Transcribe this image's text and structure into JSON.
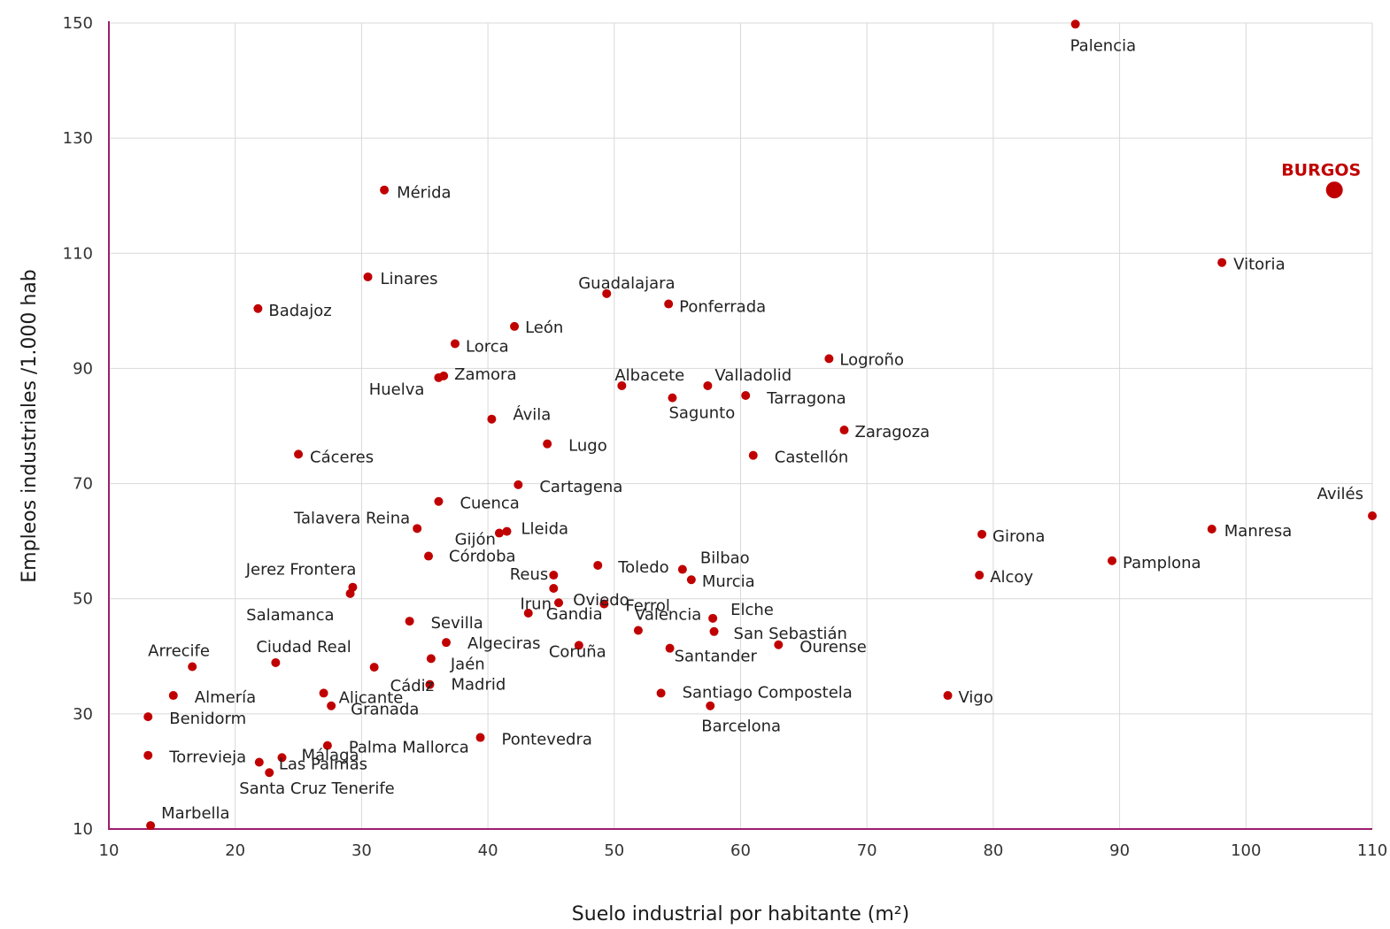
{
  "chart_data": {
    "type": "scatter",
    "title": "",
    "xlabel": "Suelo industrial por habitante (m²)",
    "ylabel": "Empleos industriales /1.000 hab",
    "xlim": [
      10,
      110
    ],
    "ylim": [
      10,
      150
    ],
    "xticks": [
      "10",
      "20",
      "30",
      "40",
      "50",
      "60",
      "70",
      "80",
      "90",
      "100",
      "110"
    ],
    "yticks": [
      "10",
      "30",
      "50",
      "70",
      "90",
      "110",
      "130",
      "150"
    ],
    "grid": true,
    "colors": {
      "point": "#c00000",
      "axis": "#9c1e6e",
      "grid": "#d9d9d9"
    },
    "points": [
      {
        "name": "Palencia",
        "x": 86.5,
        "y": 149.8
      },
      {
        "name": "BURGOS",
        "x": 107.0,
        "y": 121.0,
        "highlight": true
      },
      {
        "name": "Mérida",
        "x": 31.8,
        "y": 121.0
      },
      {
        "name": "Vitoria",
        "x": 98.1,
        "y": 108.4
      },
      {
        "name": "Linares",
        "x": 30.5,
        "y": 105.9
      },
      {
        "name": "Guadalajara",
        "x": 49.4,
        "y": 103.0
      },
      {
        "name": "Ponferrada",
        "x": 54.3,
        "y": 101.2
      },
      {
        "name": "Badajoz",
        "x": 21.8,
        "y": 100.4
      },
      {
        "name": "León",
        "x": 42.1,
        "y": 97.3
      },
      {
        "name": "Lorca",
        "x": 37.4,
        "y": 94.3
      },
      {
        "name": "Logroño",
        "x": 67.0,
        "y": 91.7
      },
      {
        "name": "Zamora",
        "x": 36.5,
        "y": 88.7
      },
      {
        "name": "Huelva",
        "x": 36.1,
        "y": 88.4
      },
      {
        "name": "Albacete",
        "x": 50.6,
        "y": 87.0
      },
      {
        "name": "Valladolid",
        "x": 57.4,
        "y": 87.0
      },
      {
        "name": "Tarragona",
        "x": 60.4,
        "y": 85.3
      },
      {
        "name": "Sagunto",
        "x": 54.6,
        "y": 84.9
      },
      {
        "name": "Ávila",
        "x": 40.3,
        "y": 81.2
      },
      {
        "name": "Zaragoza",
        "x": 68.2,
        "y": 79.3
      },
      {
        "name": "Lugo",
        "x": 44.7,
        "y": 76.9
      },
      {
        "name": "Cáceres",
        "x": 25.0,
        "y": 75.1
      },
      {
        "name": "Castellón",
        "x": 61.0,
        "y": 74.9
      },
      {
        "name": "Cartagena",
        "x": 42.4,
        "y": 69.8
      },
      {
        "name": "Cuenca",
        "x": 36.1,
        "y": 66.9
      },
      {
        "name": "Avilés",
        "x": 110.0,
        "y": 64.4
      },
      {
        "name": "Talavera Reina",
        "x": 34.4,
        "y": 62.2
      },
      {
        "name": "Manresa",
        "x": 97.3,
        "y": 62.1
      },
      {
        "name": "Lleida",
        "x": 41.5,
        "y": 61.7
      },
      {
        "name": "Gijón",
        "x": 40.9,
        "y": 61.4
      },
      {
        "name": "Girona",
        "x": 79.1,
        "y": 61.2
      },
      {
        "name": "Córdoba",
        "x": 35.3,
        "y": 57.4
      },
      {
        "name": "Pamplona",
        "x": 89.4,
        "y": 56.6
      },
      {
        "name": "Toledo",
        "x": 48.7,
        "y": 55.8
      },
      {
        "name": "Bilbao",
        "x": 55.4,
        "y": 55.1
      },
      {
        "name": "Reus",
        "x": 45.2,
        "y": 54.1
      },
      {
        "name": "Alcoy",
        "x": 78.9,
        "y": 54.1
      },
      {
        "name": "Murcia",
        "x": 56.1,
        "y": 53.3
      },
      {
        "name": "Jerez Frontera",
        "x": 29.3,
        "y": 52.0
      },
      {
        "name": "Oviedo",
        "x": 45.2,
        "y": 51.8
      },
      {
        "name": "Salamanca",
        "x": 29.1,
        "y": 50.9
      },
      {
        "name": "Irun",
        "x": 45.6,
        "y": 49.3
      },
      {
        "name": "Ferrol",
        "x": 49.2,
        "y": 49.1
      },
      {
        "name": "Gandia",
        "x": 43.2,
        "y": 47.5
      },
      {
        "name": "Elche",
        "x": 57.8,
        "y": 46.6
      },
      {
        "name": "Sevilla",
        "x": 33.8,
        "y": 46.1
      },
      {
        "name": "Valencia",
        "x": 51.9,
        "y": 44.5
      },
      {
        "name": "San Sebastián",
        "x": 57.9,
        "y": 44.3
      },
      {
        "name": "Algeciras",
        "x": 36.7,
        "y": 42.4
      },
      {
        "name": "Ourense",
        "x": 63.0,
        "y": 42.0
      },
      {
        "name": "Coruña",
        "x": 47.2,
        "y": 41.9
      },
      {
        "name": "Santander",
        "x": 54.4,
        "y": 41.4
      },
      {
        "name": "Jaén",
        "x": 35.5,
        "y": 39.6
      },
      {
        "name": "Ciudad Real",
        "x": 23.2,
        "y": 38.9
      },
      {
        "name": "Arrecife",
        "x": 16.6,
        "y": 38.2
      },
      {
        "name": "Cádiz",
        "x": 31.0,
        "y": 38.1
      },
      {
        "name": "Madrid",
        "x": 35.4,
        "y": 35.1
      },
      {
        "name": "Alicante",
        "x": 27.0,
        "y": 33.6
      },
      {
        "name": "Santiago Compostela",
        "x": 53.7,
        "y": 33.6
      },
      {
        "name": "Almería",
        "x": 15.1,
        "y": 33.2
      },
      {
        "name": "Vigo",
        "x": 76.4,
        "y": 33.2
      },
      {
        "name": "Granada",
        "x": 27.6,
        "y": 31.4
      },
      {
        "name": "Barcelona",
        "x": 57.6,
        "y": 31.4
      },
      {
        "name": "Benidorm",
        "x": 13.1,
        "y": 29.5
      },
      {
        "name": "Pontevedra",
        "x": 39.4,
        "y": 25.9
      },
      {
        "name": "Palma Mallorca",
        "x": 27.3,
        "y": 24.5
      },
      {
        "name": "Torrevieja",
        "x": 13.1,
        "y": 22.8
      },
      {
        "name": "Málaga",
        "x": 23.7,
        "y": 22.4
      },
      {
        "name": "Las Palmas",
        "x": 21.9,
        "y": 21.6
      },
      {
        "name": "Santa Cruz Tenerife",
        "x": 22.7,
        "y": 19.8
      },
      {
        "name": "Marbella",
        "x": 13.3,
        "y": 10.6
      }
    ]
  }
}
